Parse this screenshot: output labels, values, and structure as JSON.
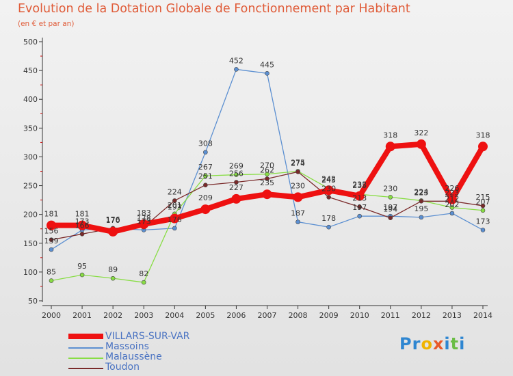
{
  "title": "Evolution de la Dotation Globale de Fonctionnement par Habitant",
  "subtitle": "(en € et par an)",
  "brand": {
    "letters": [
      "P",
      "r",
      "o",
      "x",
      "i",
      "t",
      "i"
    ],
    "colors": [
      "#2e86d1",
      "#2e86d1",
      "#f0b400",
      "#e8592b",
      "#2e86d1",
      "#6bbd45",
      "#2e86d1"
    ]
  },
  "chart_data": {
    "type": "line",
    "title": "Evolution de la Dotation Globale de Fonctionnement par Habitant",
    "ylabel": "(en € et par an)",
    "xlabel": "",
    "x": [
      "2000",
      "2001",
      "2002",
      "2003",
      "2004",
      "2005",
      "2006",
      "2007",
      "2008",
      "2009",
      "2010",
      "2011",
      "2012",
      "2013",
      "2014"
    ],
    "ylim": [
      50,
      500
    ],
    "yticks": [
      50,
      100,
      150,
      200,
      250,
      300,
      350,
      400,
      450,
      500
    ],
    "grid": false,
    "series": [
      {
        "name": "VILLARS-SUR-VAR",
        "color": "#ee1111",
        "values": [
          181,
          181,
          170,
          183,
          193,
          209,
          227,
          235,
          230,
          242,
          232,
          318,
          322,
          226,
          318
        ]
      },
      {
        "name": "Massoins",
        "color": "#5b8fd1",
        "values": [
          139,
          173,
          176,
          173,
          176,
          308,
          452,
          445,
          187,
          178,
          197,
          197,
          195,
          202,
          173
        ]
      },
      {
        "name": "Malaussène",
        "color": "#88dd44",
        "values": [
          85,
          95,
          89,
          82,
          201,
          267,
          269,
          270,
          275,
          245,
          235,
          230,
          224,
          212,
          207
        ]
      },
      {
        "name": "Toudon",
        "color": "#7a2a2a",
        "values": [
          156,
          166,
          176,
          178,
          224,
          251,
          256,
          262,
          274,
          230,
          213,
          194,
          223,
          223,
          215
        ]
      }
    ],
    "value_labels": [
      {
        "series": 0,
        "values": [
          "181",
          "181",
          "170",
          "183",
          "193",
          "209",
          "227",
          "235",
          "230",
          "242",
          "232",
          "318",
          "322",
          "226",
          "318"
        ]
      },
      {
        "series": 1,
        "values": [
          "139",
          "173",
          "176",
          "173",
          "176",
          "308",
          "452",
          "445",
          "187",
          "178",
          "197",
          "197",
          "195",
          "202",
          "173"
        ]
      },
      {
        "series": 2,
        "values": [
          "85",
          "95",
          "89",
          "82",
          "201",
          "267",
          "269",
          "270",
          "275",
          "245",
          "235",
          "230",
          "224",
          "212",
          "207"
        ]
      },
      {
        "series": 3,
        "values": [
          "156",
          "166",
          "176",
          "178",
          "224",
          "251",
          "256",
          "262",
          "274",
          "230",
          "213",
          "194",
          "223",
          "223",
          "215"
        ]
      }
    ]
  }
}
